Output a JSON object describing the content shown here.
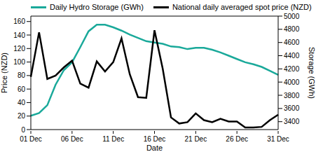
{
  "chart_data": {
    "type": "line",
    "legend": "top",
    "x_label": "Date",
    "y_label": "Price (NZD)",
    "y2_label": "Storage (GWh)",
    "categories": [
      "01 Dec",
      null,
      null,
      null,
      null,
      "06 Dec",
      null,
      null,
      null,
      null,
      "11 Dec",
      null,
      null,
      null,
      null,
      "16 Dec",
      null,
      null,
      null,
      null,
      "21 Dec",
      null,
      null,
      null,
      null,
      "26 Dec",
      null,
      null,
      null,
      null,
      "31 Dec"
    ],
    "ylim": [
      0,
      168
    ],
    "yticks": [
      0,
      20,
      40,
      60,
      80,
      100,
      120,
      140,
      160
    ],
    "y2lim": [
      3280,
      5000
    ],
    "y2ticks": [
      3400,
      3600,
      3800,
      4000,
      4200,
      4400,
      4600,
      4800,
      5000
    ],
    "series": [
      {
        "name": "Daily Hydro Storage (GWh)",
        "color": "#1aa99a",
        "axis": "y2",
        "values": [
          3490,
          3530,
          3650,
          3960,
          4180,
          4300,
          4530,
          4770,
          4870,
          4870,
          4830,
          4780,
          4720,
          4670,
          4620,
          4600,
          4580,
          4540,
          4530,
          4500,
          4520,
          4520,
          4490,
          4450,
          4400,
          4350,
          4300,
          4270,
          4230,
          4170,
          4110
        ]
      },
      {
        "name": "National daily averaged spot price (NZD)",
        "color": "#000000",
        "axis": "y",
        "values": [
          78,
          144,
          75,
          80,
          92,
          102,
          68,
          62,
          101,
          86,
          100,
          135,
          82,
          48,
          47,
          147,
          90,
          18,
          9,
          11,
          24,
          14,
          11,
          16,
          12,
          12,
          3,
          3,
          4,
          14,
          22
        ]
      }
    ]
  }
}
